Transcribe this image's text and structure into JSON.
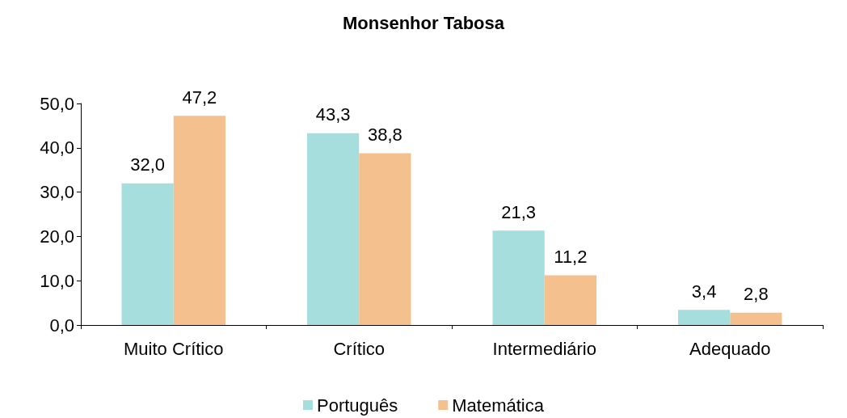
{
  "chart_data": {
    "type": "bar",
    "title": "Monsenhor Tabosa",
    "categories": [
      "Muito Crítico",
      "Crítico",
      "Intermediário",
      "Adequado"
    ],
    "series": [
      {
        "name": "Português",
        "color": "#a6dede",
        "values": [
          32.0,
          43.3,
          21.3,
          3.4
        ],
        "value_labels": [
          "32,0",
          "43,3",
          "21,3",
          "3,4"
        ]
      },
      {
        "name": "Matemática",
        "color": "#f4c08e",
        "values": [
          47.2,
          38.8,
          11.2,
          2.8
        ],
        "value_labels": [
          "47,2",
          "38,8",
          "11,2",
          "2,8"
        ]
      }
    ],
    "ylim": [
      0,
      50
    ],
    "yticks": [
      {
        "value": 0,
        "label": "0,0"
      },
      {
        "value": 10,
        "label": "10,0"
      },
      {
        "value": 20,
        "label": "20,0"
      },
      {
        "value": 30,
        "label": "30,0"
      },
      {
        "value": 40,
        "label": "40,0"
      },
      {
        "value": 50,
        "label": "50,0"
      }
    ],
    "grid": false,
    "legend": "bottom"
  }
}
